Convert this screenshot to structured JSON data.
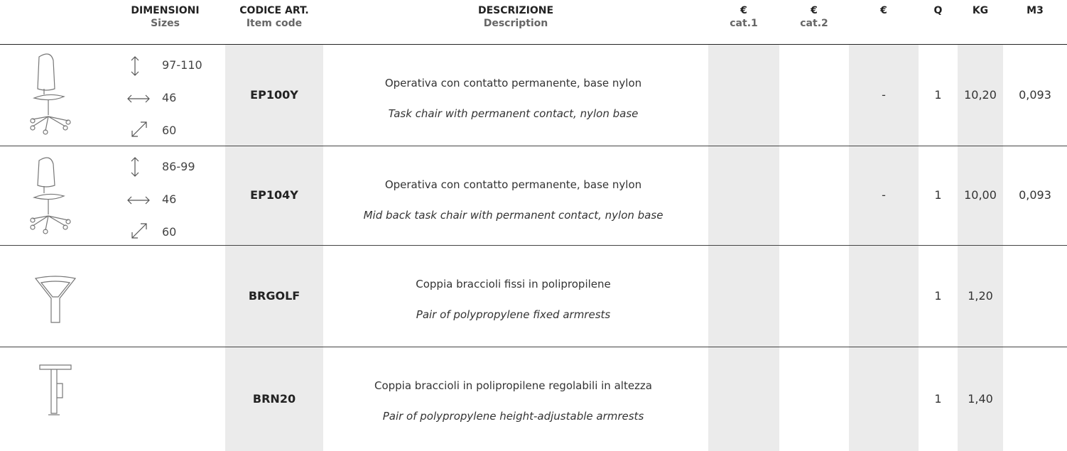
{
  "header": {
    "columns": [
      {
        "title": "DIMENSIONI",
        "subtitle": "Sizes"
      },
      {
        "title": "CODICE ART.",
        "subtitle": "Item code"
      },
      {
        "title": "DESCRIZIONE",
        "subtitle": "Description"
      },
      {
        "title": "€",
        "subtitle": "cat.1"
      },
      {
        "title": "€",
        "subtitle": "cat.2"
      },
      {
        "title": "€"
      },
      {
        "title": "Q"
      },
      {
        "title": "KG"
      },
      {
        "title": "M3"
      }
    ]
  },
  "table": {
    "rows": [
      {
        "dimensions": {
          "height": "97-110",
          "width": "46",
          "depth": "60"
        },
        "code": "EP100Y",
        "description_it": "Operativa con contatto permanente, base nylon",
        "description_en": "Task chair with permanent contact, nylon base",
        "price": "-",
        "q": "1",
        "kg": "10,20",
        "m3": "0,093"
      },
      {
        "dimensions": {
          "height": "86-99",
          "width": "46",
          "depth": "60"
        },
        "code": "EP104Y",
        "description_it": "Operativa con contatto permanente, base nylon",
        "description_en": "Mid back task chair with permanent contact, nylon base",
        "price": "-",
        "q": "1",
        "kg": "10,00",
        "m3": "0,093"
      },
      {
        "code": "BRGOLF",
        "description_it": "Coppia braccioli fissi in polipropilene",
        "description_en": "Pair of polypropylene fixed armrests",
        "q": "1",
        "kg": "1,20"
      },
      {
        "code": "BRN20",
        "description_it": "Coppia braccioli in polipropilene regolabili in altezza",
        "description_en": "Pair of polypropylene height-adjustable armrests",
        "q": "1",
        "kg": "1,40"
      }
    ]
  }
}
